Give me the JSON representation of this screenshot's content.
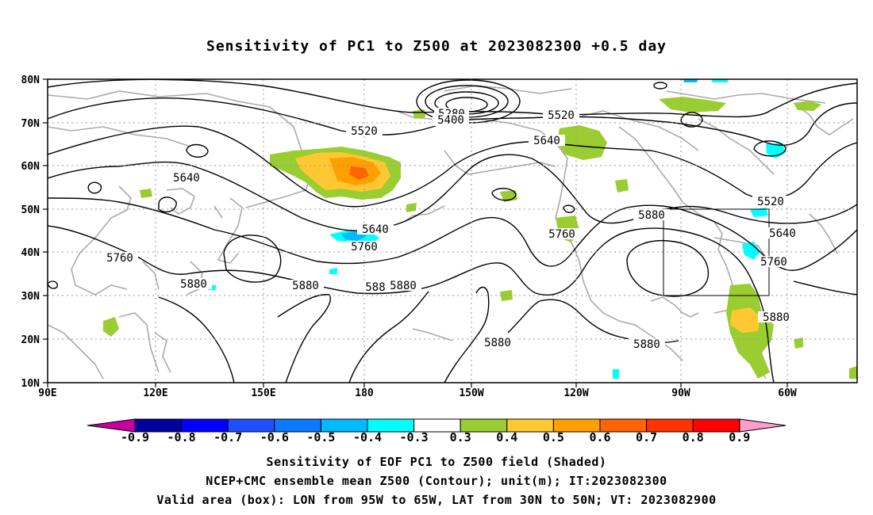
{
  "title": "Sensitivity of PC1 to Z500 at 2023082300 +0.5 day",
  "map": {
    "lat_labels": [
      "80N",
      "70N",
      "60N",
      "50N",
      "40N",
      "30N",
      "20N",
      "10N"
    ],
    "lon_labels": [
      "90E",
      "120E",
      "150E",
      "180",
      "150W",
      "120W",
      "90W",
      "60W"
    ],
    "contour_labels": [
      {
        "text": "5280"
      },
      {
        "text": "5400"
      },
      {
        "text": "5520"
      },
      {
        "text": "5520"
      },
      {
        "text": "5640"
      },
      {
        "text": "5640"
      },
      {
        "text": "5520"
      },
      {
        "text": "5640"
      },
      {
        "text": "5760"
      },
      {
        "text": "5640"
      },
      {
        "text": "5760"
      },
      {
        "text": "5880"
      },
      {
        "text": "5760"
      },
      {
        "text": "5760"
      },
      {
        "text": "5880"
      },
      {
        "text": "5880"
      },
      {
        "text": "588"
      },
      {
        "text": "5880"
      },
      {
        "text": "5880"
      },
      {
        "text": "5880"
      },
      {
        "text": "5880"
      }
    ],
    "valid_box": {
      "lon_min": "95W",
      "lon_max": "65W",
      "lat_min": "30N",
      "lat_max": "50N"
    }
  },
  "colorbar": {
    "ticks": [
      "-0.9",
      "-0.8",
      "-0.7",
      "-0.6",
      "-0.5",
      "-0.4",
      "-0.3",
      "0.3",
      "0.4",
      "0.5",
      "0.6",
      "0.7",
      "0.8",
      "0.9"
    ],
    "colors": [
      "#00009f",
      "#0000ff",
      "#1e50ff",
      "#0a78ff",
      "#00bbff",
      "#00ffff",
      "#ffffff",
      "#9acd32",
      "#ffc832",
      "#ffa000",
      "#ff6400",
      "#ff3200",
      "#ff0000"
    ],
    "low_end_color": "#c800a0",
    "high_end_color": "#ff9ec8"
  },
  "captions": [
    "Sensitivity of EOF PC1 to Z500 field (Shaded)",
    "NCEP+CMC ensemble mean Z500 (Contour); unit(m); IT:2023082300",
    "Valid area (box): LON from 95W to 65W, LAT from 30N to 50N; VT: 2023082900"
  ]
}
